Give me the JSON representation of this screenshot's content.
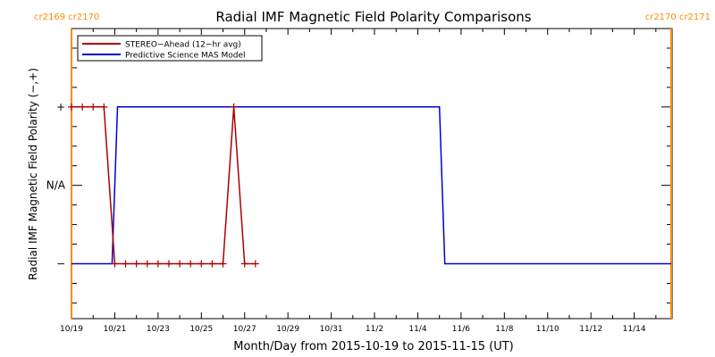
{
  "chart_data": {
    "type": "line",
    "title": "Radial IMF Magnetic Field Polarity Comparisons",
    "xlabel": "Month/Day from 2015-10-19 to 2015-11-15 (UT)",
    "ylabel": "Radial IMF Magnetic Field Polarity (−,+)",
    "ylim": [
      -1.7,
      2.0
    ],
    "xlim": [
      "2015-10-19T00:00",
      "2015-11-15T18:00"
    ],
    "x_tick_labels": [
      "10/19",
      "10/21",
      "10/23",
      "10/25",
      "10/27",
      "10/29",
      "10/31",
      "11/2",
      "11/4",
      "11/6",
      "11/8",
      "11/10",
      "11/12",
      "11/14"
    ],
    "x_tick_dates": [
      "2015-10-19",
      "2015-10-21",
      "2015-10-23",
      "2015-10-25",
      "2015-10-27",
      "2015-10-29",
      "2015-10-31",
      "2015-11-02",
      "2015-11-04",
      "2015-11-06",
      "2015-11-08",
      "2015-11-10",
      "2015-11-12",
      "2015-11-14"
    ],
    "y_tick_labels": [
      {
        "value": 1,
        "label": "+"
      },
      {
        "value": 0,
        "label": "N/A"
      },
      {
        "value": -1,
        "label": "−"
      }
    ],
    "carrington_markers": [
      {
        "date": "2015-10-19T00:00",
        "label": "cr2169 cr2170",
        "color": "#ff8c00"
      },
      {
        "date": "2015-11-15T17:00",
        "label": "cr2170 cr2171",
        "color": "#ff8c00"
      }
    ],
    "legend": {
      "position": "top-left"
    },
    "series": [
      {
        "name": "STEREO−Ahead (12−hr avg)",
        "color": "#aa0000",
        "markers": "plus",
        "points": [
          {
            "x": "2015-10-19T00:00",
            "y": 1
          },
          {
            "x": "2015-10-19T12:00",
            "y": 1
          },
          {
            "x": "2015-10-20T00:00",
            "y": 1
          },
          {
            "x": "2015-10-20T12:00",
            "y": 1
          },
          {
            "x": "2015-10-21T00:00",
            "y": -1
          },
          {
            "x": "2015-10-21T12:00",
            "y": -1
          },
          {
            "x": "2015-10-22T00:00",
            "y": -1
          },
          {
            "x": "2015-10-22T12:00",
            "y": -1
          },
          {
            "x": "2015-10-23T00:00",
            "y": -1
          },
          {
            "x": "2015-10-23T12:00",
            "y": -1
          },
          {
            "x": "2015-10-24T00:00",
            "y": -1
          },
          {
            "x": "2015-10-24T12:00",
            "y": -1
          },
          {
            "x": "2015-10-25T00:00",
            "y": -1
          },
          {
            "x": "2015-10-25T12:00",
            "y": -1
          },
          {
            "x": "2015-10-26T00:00",
            "y": -1
          },
          {
            "x": "2015-10-26T12:00",
            "y": 1
          },
          {
            "x": "2015-10-27T00:00",
            "y": -1
          },
          {
            "x": "2015-10-27T12:00",
            "y": -1
          }
        ]
      },
      {
        "name": "Predictive Science MAS Model",
        "color": "#0000cc",
        "markers": "none",
        "points": [
          {
            "x": "2015-10-19T00:00",
            "y": -1
          },
          {
            "x": "2015-10-20T21:00",
            "y": -1
          },
          {
            "x": "2015-10-21T03:00",
            "y": 1
          },
          {
            "x": "2015-11-05T00:00",
            "y": 1
          },
          {
            "x": "2015-11-05T06:00",
            "y": -1
          },
          {
            "x": "2015-11-15T17:00",
            "y": -1
          }
        ]
      }
    ]
  }
}
